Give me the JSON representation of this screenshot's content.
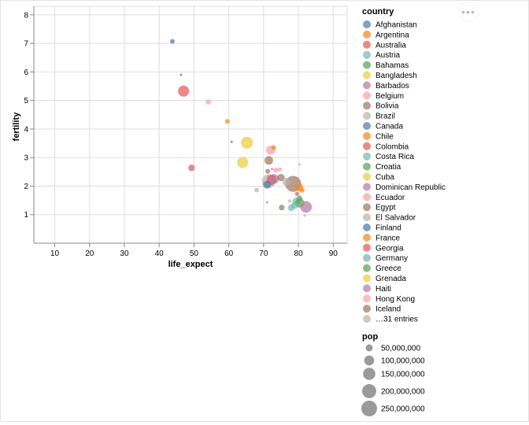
{
  "chart_data": {
    "type": "scatter",
    "title": "",
    "xlabel": "life_expect",
    "ylabel": "fertility",
    "xlim": [
      4,
      94
    ],
    "ylim": [
      0,
      8.3
    ],
    "x_ticks": [
      10,
      20,
      30,
      40,
      50,
      60,
      70,
      80,
      90
    ],
    "y_ticks": [
      1,
      2,
      3,
      4,
      5,
      6,
      7,
      8
    ],
    "grid": true,
    "legend_position": "right",
    "color_legend": {
      "title": "country",
      "entries": [
        {
          "name": "Afghanistan",
          "color": "#4c78a8"
        },
        {
          "name": "Argentina",
          "color": "#f58518"
        },
        {
          "name": "Australia",
          "color": "#e45756"
        },
        {
          "name": "Austria",
          "color": "#72b7b2"
        },
        {
          "name": "Bahamas",
          "color": "#54a24b"
        },
        {
          "name": "Bangladesh",
          "color": "#eeca3b"
        },
        {
          "name": "Barbados",
          "color": "#b279a2"
        },
        {
          "name": "Belgium",
          "color": "#ff9da6"
        },
        {
          "name": "Bolivia",
          "color": "#9d755d"
        },
        {
          "name": "Brazil",
          "color": "#bab0ac"
        },
        {
          "name": "Canada",
          "color": "#4c78a8"
        },
        {
          "name": "Chile",
          "color": "#f58518"
        },
        {
          "name": "Colombia",
          "color": "#e45756"
        },
        {
          "name": "Costa Rica",
          "color": "#72b7b2"
        },
        {
          "name": "Croatia",
          "color": "#54a24b"
        },
        {
          "name": "Cuba",
          "color": "#eeca3b"
        },
        {
          "name": "Dominican Republic",
          "color": "#b279a2"
        },
        {
          "name": "Ecuador",
          "color": "#ff9da6"
        },
        {
          "name": "Egypt",
          "color": "#9d755d"
        },
        {
          "name": "El Salvador",
          "color": "#bab0ac"
        },
        {
          "name": "Finland",
          "color": "#4c78a8"
        },
        {
          "name": "France",
          "color": "#f58518"
        },
        {
          "name": "Georgia",
          "color": "#e45756"
        },
        {
          "name": "Germany",
          "color": "#72b7b2"
        },
        {
          "name": "Greece",
          "color": "#54a24b"
        },
        {
          "name": "Grenada",
          "color": "#eeca3b"
        },
        {
          "name": "Haiti",
          "color": "#b279a2"
        },
        {
          "name": "Hong Kong",
          "color": "#ff9da6"
        },
        {
          "name": "Iceland",
          "color": "#9d755d"
        },
        {
          "name": "…31 entries",
          "color": "#bab0ac"
        }
      ]
    },
    "size_legend": {
      "title": "pop",
      "entries": [
        {
          "label": "50,000,000",
          "value": 50000000
        },
        {
          "label": "100,000,000",
          "value": 100000000
        },
        {
          "label": "150,000,000",
          "value": 150000000
        },
        {
          "label": "200,000,000",
          "value": 200000000
        },
        {
          "label": "250,000,000",
          "value": 250000000
        }
      ]
    },
    "points": [
      {
        "x": 43.8,
        "y": 7.07,
        "pop": 20000000,
        "color": "#4c78a8"
      },
      {
        "x": 46.3,
        "y": 5.9,
        "pop": 3000000,
        "color": "#4c78a8"
      },
      {
        "x": 47.0,
        "y": 5.33,
        "pop": 120000000,
        "color": "#e45756"
      },
      {
        "x": 54.1,
        "y": 4.95,
        "pop": 25000000,
        "color": "#ff9da6"
      },
      {
        "x": 59.6,
        "y": 4.27,
        "pop": 20000000,
        "color": "#f58518"
      },
      {
        "x": 60.8,
        "y": 3.55,
        "pop": 5000000,
        "color": "#9d755d"
      },
      {
        "x": 65.2,
        "y": 3.52,
        "pop": 140000000,
        "color": "#eeca3b"
      },
      {
        "x": 64.0,
        "y": 2.83,
        "pop": 120000000,
        "color": "#eeca3b"
      },
      {
        "x": 49.3,
        "y": 2.64,
        "pop": 40000000,
        "color": "#e45756"
      },
      {
        "x": 72.0,
        "y": 3.26,
        "pop": 80000000,
        "color": "#ff9da6"
      },
      {
        "x": 72.9,
        "y": 3.35,
        "pop": 20000000,
        "color": "#f58518"
      },
      {
        "x": 71.5,
        "y": 2.9,
        "pop": 70000000,
        "color": "#9d755d"
      },
      {
        "x": 71.2,
        "y": 2.52,
        "pop": 20000000,
        "color": "#9d755d"
      },
      {
        "x": 73.5,
        "y": 2.56,
        "pop": 25000000,
        "color": "#ff9da6"
      },
      {
        "x": 74.7,
        "y": 2.58,
        "pop": 15000000,
        "color": "#ff9da6"
      },
      {
        "x": 80.3,
        "y": 2.76,
        "pop": 5000000,
        "color": "#bab0ac"
      },
      {
        "x": 72.4,
        "y": 2.6,
        "pop": 4000000,
        "color": "#b279a2"
      },
      {
        "x": 71.5,
        "y": 2.18,
        "pop": 180000000,
        "color": "#bab0ac"
      },
      {
        "x": 72.3,
        "y": 2.22,
        "pop": 100000000,
        "color": "#e45756"
      },
      {
        "x": 73.0,
        "y": 2.25,
        "pop": 90000000,
        "color": "#b279a2"
      },
      {
        "x": 71.0,
        "y": 2.05,
        "pop": 60000000,
        "color": "#4c78a8"
      },
      {
        "x": 75.0,
        "y": 2.3,
        "pop": 50000000,
        "color": "#9d755d"
      },
      {
        "x": 78.5,
        "y": 2.08,
        "pop": 250000000,
        "color": "#9d755d"
      },
      {
        "x": 76.5,
        "y": 2.15,
        "pop": 60000000,
        "color": "#bab0ac"
      },
      {
        "x": 80.3,
        "y": 1.95,
        "pop": 55000000,
        "color": "#f58518"
      },
      {
        "x": 81.1,
        "y": 1.85,
        "pop": 20000000,
        "color": "#f58518"
      },
      {
        "x": 79.6,
        "y": 1.73,
        "pop": 15000000,
        "color": "#e45756"
      },
      {
        "x": 68.0,
        "y": 1.86,
        "pop": 20000000,
        "color": "#bab0ac"
      },
      {
        "x": 80.3,
        "y": 1.57,
        "pop": 30000000,
        "color": "#54a24b"
      },
      {
        "x": 79.4,
        "y": 1.46,
        "pop": 60000000,
        "color": "#72b7b2"
      },
      {
        "x": 80.4,
        "y": 1.41,
        "pop": 80000000,
        "color": "#54a24b"
      },
      {
        "x": 78.9,
        "y": 1.32,
        "pop": 45000000,
        "color": "#72b7b2"
      },
      {
        "x": 77.9,
        "y": 1.24,
        "pop": 40000000,
        "color": "#72b7b2"
      },
      {
        "x": 77.5,
        "y": 1.48,
        "pop": 10000000,
        "color": "#bab0ac"
      },
      {
        "x": 75.2,
        "y": 1.25,
        "pop": 30000000,
        "color": "#9d755d"
      },
      {
        "x": 82.2,
        "y": 1.27,
        "pop": 130000000,
        "color": "#b279a2"
      },
      {
        "x": 81.8,
        "y": 0.97,
        "pop": 5000000,
        "color": "#bab0ac"
      },
      {
        "x": 71.0,
        "y": 1.43,
        "pop": 3000000,
        "color": "#b279a2"
      }
    ]
  },
  "actions_menu": {
    "label": "•••"
  }
}
